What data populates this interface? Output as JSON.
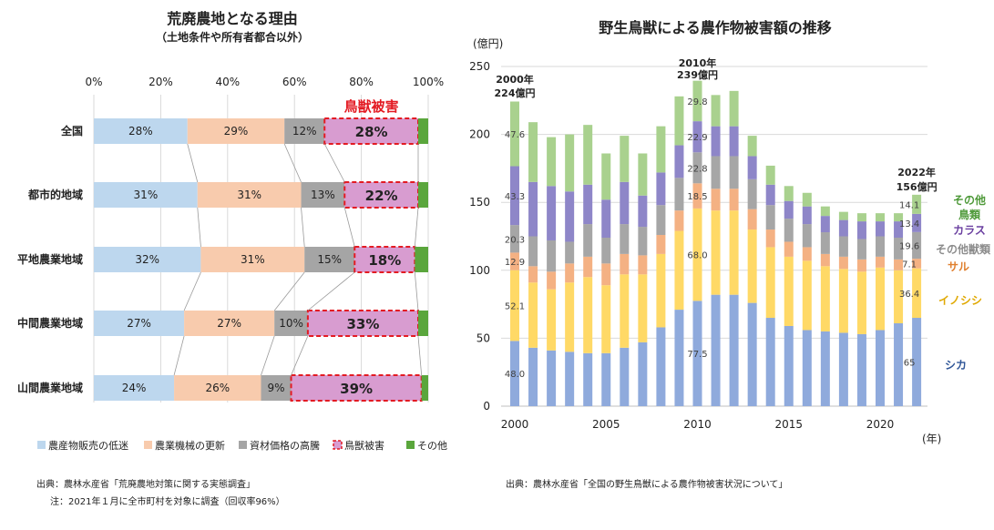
{
  "left_chart": {
    "title": "荒廃農地となる理由",
    "subtitle": "（土地条件や所有者都合以外）",
    "highlight_label": "鳥獣被害",
    "source": "出典：農林水産省「荒廃農地対策に関する実態調査」",
    "note": "注：2021年１月に全市町村を対象に調査（回収率96%）"
  },
  "right_chart": {
    "title": "野生鳥獣による農作物被害額の推移",
    "y_unit": "(億円)",
    "x_unit": "(年)",
    "source": "出典：農林水産省「全国の野生鳥獣による農作物被害状況について」",
    "callouts": [
      {
        "year": "2000年",
        "amount": "224億円"
      },
      {
        "year": "2010年",
        "amount": "239億円"
      },
      {
        "year": "2022年",
        "amount": "156億円"
      }
    ],
    "series_labels": [
      {
        "text": "その他",
        "color": "#4f9a3a"
      },
      {
        "text": "鳥類",
        "color": "#4f9a3a"
      },
      {
        "text": "カラス",
        "color": "#6a3fa0"
      },
      {
        "text": "その他獣類",
        "color": "#8c8c8c"
      },
      {
        "text": "サル",
        "color": "#e07f2d"
      },
      {
        "text": "イノシシ",
        "color": "#e0a800"
      },
      {
        "text": "シカ",
        "color": "#2f5597"
      }
    ]
  },
  "chart_data": [
    {
      "type": "bar",
      "orientation": "horizontal-stacked-percent",
      "title": "荒廃農地となる理由",
      "subtitle": "（土地条件や所有者都合以外）",
      "xlim": [
        0,
        100
      ],
      "x_ticks": [
        "0%",
        "20%",
        "40%",
        "60%",
        "80%",
        "100%"
      ],
      "categories": [
        "全国",
        "都市的地域",
        "平地農業地域",
        "中間農業地域",
        "山間農業地域"
      ],
      "series": [
        {
          "name": "農産物販売の低迷",
          "color": "#bdd7ee",
          "values": [
            28,
            31,
            32,
            27,
            24
          ],
          "labels": [
            "28%",
            "31%",
            "32%",
            "27%",
            "24%"
          ]
        },
        {
          "name": "農業機械の更新",
          "color": "#f8cbad",
          "values": [
            29,
            31,
            31,
            27,
            26
          ],
          "labels": [
            "29%",
            "31%",
            "31%",
            "27%",
            "26%"
          ]
        },
        {
          "name": "資材価格の高騰",
          "color": "#a5a5a5",
          "values": [
            12,
            13,
            15,
            10,
            9
          ],
          "labels": [
            "12%",
            "13%",
            "15%",
            "10%",
            "9%"
          ]
        },
        {
          "name": "鳥獣被害",
          "color": "#d89cd0",
          "values": [
            28,
            22,
            18,
            33,
            39
          ],
          "labels": [
            "28%",
            "22%",
            "18%",
            "33%",
            "39%"
          ]
        },
        {
          "name": "その他",
          "color": "#5aa63c",
          "values": [
            3,
            3,
            4,
            3,
            2
          ],
          "labels": [
            "",
            "",
            "",
            "",
            ""
          ]
        }
      ],
      "legend_position": "bottom"
    },
    {
      "type": "bar",
      "orientation": "vertical-stacked",
      "title": "野生鳥獣による農作物被害額の推移",
      "ylabel": "(億円)",
      "xlabel": "(年)",
      "ylim": [
        0,
        250
      ],
      "y_ticks": [
        "0",
        "50",
        "100",
        "150",
        "200",
        "250"
      ],
      "x_ticks": [
        "2000",
        "2005",
        "2010",
        "2015",
        "2020"
      ],
      "categories": [
        "2000",
        "2001",
        "2002",
        "2003",
        "2004",
        "2005",
        "2006",
        "2007",
        "2008",
        "2009",
        "2010",
        "2011",
        "2012",
        "2013",
        "2014",
        "2015",
        "2016",
        "2017",
        "2018",
        "2019",
        "2020",
        "2021",
        "2022"
      ],
      "series": [
        {
          "name": "シカ",
          "color": "#8faadc",
          "values": [
            48.0,
            43,
            41,
            40,
            39,
            39,
            43,
            47,
            58,
            71,
            77.5,
            82,
            82,
            76,
            65,
            59,
            56,
            55,
            54,
            53,
            56,
            61,
            65
          ]
        },
        {
          "name": "イノシシ",
          "color": "#ffd966",
          "values": [
            52.1,
            48,
            45,
            51,
            56,
            50,
            54,
            50,
            54,
            58,
            68.0,
            62,
            62,
            54,
            52,
            51,
            51,
            48,
            47,
            46,
            46,
            39,
            36.4
          ]
        },
        {
          "name": "サル",
          "color": "#f4b183",
          "values": [
            12.9,
            12,
            13,
            14,
            15,
            16,
            15,
            14,
            14,
            15,
            18.5,
            16,
            16,
            15,
            13,
            11,
            10,
            9,
            9,
            9,
            8,
            8,
            7.1
          ]
        },
        {
          "name": "その他獣類",
          "color": "#a6a6a6",
          "values": [
            20.3,
            22,
            23,
            16,
            24,
            19,
            22,
            21,
            22,
            24,
            22.8,
            24,
            24,
            22,
            18,
            17,
            17,
            16,
            15,
            15,
            15,
            16,
            19.6
          ]
        },
        {
          "name": "カラス",
          "color": "#8e86c8",
          "values": [
            43.3,
            40,
            40,
            37,
            29,
            28,
            31,
            23,
            24,
            24,
            22.9,
            22,
            22,
            17,
            15,
            13,
            13,
            12,
            12,
            13,
            11,
            12,
            13.4
          ]
        },
        {
          "name": "その他鳥類",
          "color": "#a9d18e",
          "values": [
            47.6,
            44,
            36,
            42,
            44,
            34,
            34,
            31,
            34,
            36,
            29.8,
            23,
            26,
            15,
            14,
            11,
            10,
            7,
            6,
            6,
            6,
            6,
            14.1
          ]
        }
      ],
      "data_labels": {
        "2000": [
          "48.0",
          "52.1",
          "12.9",
          "20.3",
          "43.3",
          "47.6"
        ],
        "2010": [
          "77.5",
          "68.0",
          "18.5",
          "22.8",
          "22.9",
          "29.8"
        ],
        "2022": [
          "65",
          "36.4",
          "7.1",
          "19.6",
          "13.4",
          "14.1"
        ]
      }
    }
  ]
}
